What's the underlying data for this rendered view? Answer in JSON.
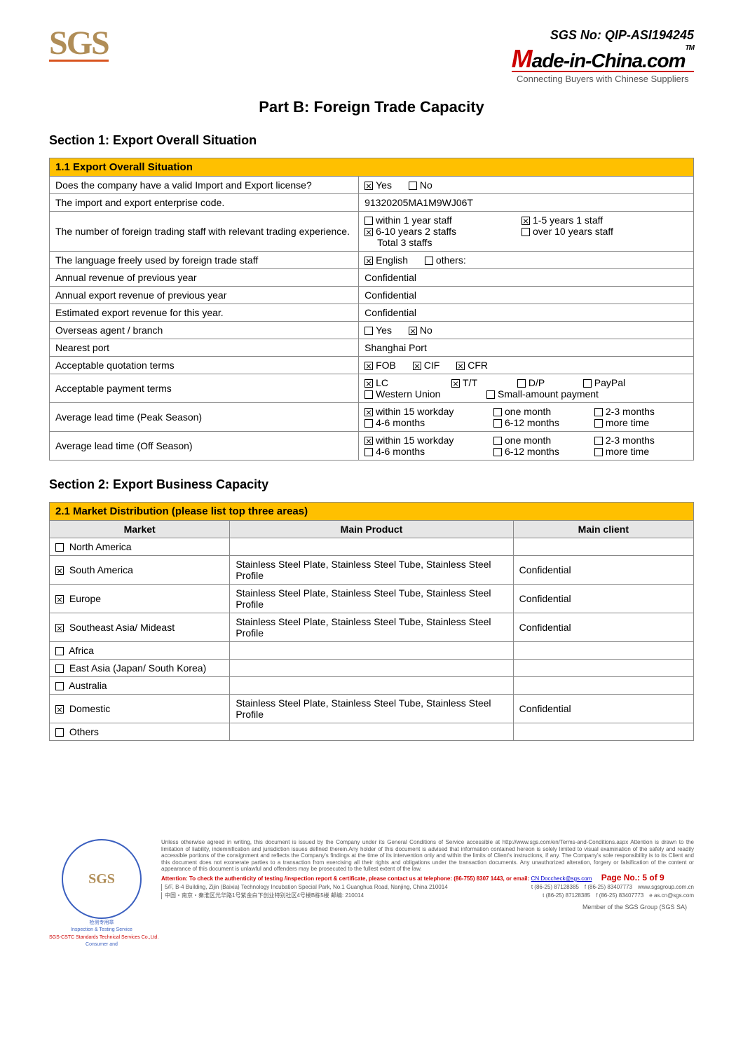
{
  "header": {
    "sgs_logo_text": "SGS",
    "sgs_no_label": "SGS No: QIP-ASI194245",
    "mic_logo_html": "ade-in-China.com",
    "mic_tag": "Connecting Buyers with Chinese Suppliers",
    "tm": "TM"
  },
  "part_title": "Part B: Foreign Trade Capacity",
  "section1": {
    "title": "Section 1: Export Overall Situation",
    "banner": "1.1 Export Overall Situation",
    "rows": {
      "license_q": "Does the company have a valid Import and Export license?",
      "license_yes": "Yes",
      "license_no": "No",
      "code_label": "The import and export enterprise code.",
      "code_value": "91320205MA1M9WJ06T",
      "staff_label": "The number of foreign trading staff with relevant trading experience.",
      "staff_opt1": "within 1 year   staff",
      "staff_opt2": "1-5 years 1 staff",
      "staff_opt3": "6-10 years 2 staffs",
      "staff_opt4": "over 10 years   staff",
      "staff_total": "Total 3 staffs",
      "lang_label": "The language freely used by foreign trade staff",
      "lang_english": "English",
      "lang_others": "others:",
      "rev_prev_label": "Annual revenue of previous year",
      "rev_prev_val": "Confidential",
      "exp_prev_label": "Annual export revenue of previous year",
      "exp_prev_val": "Confidential",
      "est_exp_label": "Estimated export revenue for this year.",
      "est_exp_val": "Confidential",
      "agent_label": "Overseas agent / branch",
      "agent_yes": "Yes",
      "agent_no": "No",
      "port_label": "Nearest port",
      "port_val": "Shanghai Port",
      "quote_label": "Acceptable quotation terms",
      "q_fob": "FOB",
      "q_cif": "CIF",
      "q_cfr": "CFR",
      "pay_label": "Acceptable payment terms",
      "p_lc": "LC",
      "p_tt": "T/T",
      "p_dp": "D/P",
      "p_pp": "PayPal",
      "p_wu": "Western Union",
      "p_sm": "Small-amount payment",
      "lead_peak_label": "Average lead time (Peak Season)",
      "lt_15": "within 15 workday",
      "lt_1m": "one month",
      "lt_23": "2-3 months",
      "lt_46": "4-6 months",
      "lt_612": "6-12 months",
      "lt_more": "more time",
      "lead_off_label": "Average lead time (Off Season)"
    }
  },
  "section2": {
    "title": "Section 2: Export Business Capacity",
    "banner": "2.1 Market Distribution (please list top three areas)",
    "cols": {
      "market": "Market",
      "product": "Main Product",
      "client": "Main client"
    },
    "markets": [
      {
        "name": "North America",
        "checked": false,
        "product": "",
        "client": ""
      },
      {
        "name": "South America",
        "checked": true,
        "product": "Stainless Steel Plate, Stainless Steel Tube, Stainless Steel Profile",
        "client": "Confidential"
      },
      {
        "name": "Europe",
        "checked": true,
        "product": "Stainless Steel Plate, Stainless Steel Tube, Stainless Steel Profile",
        "client": "Confidential"
      },
      {
        "name": "Southeast Asia/ Mideast",
        "checked": true,
        "product": "Stainless Steel Plate, Stainless Steel Tube, Stainless Steel Profile",
        "client": "Confidential"
      },
      {
        "name": "Africa",
        "checked": false,
        "product": "",
        "client": ""
      },
      {
        "name": "East Asia (Japan/ South Korea)",
        "checked": false,
        "product": "",
        "client": ""
      },
      {
        "name": "Australia",
        "checked": false,
        "product": "",
        "client": ""
      },
      {
        "name": "Domestic",
        "checked": true,
        "product": "Stainless Steel Plate, Stainless Steel Tube, Stainless Steel Profile",
        "client": "Confidential"
      },
      {
        "name": "Others",
        "checked": false,
        "product": "",
        "client": ""
      }
    ]
  },
  "footer": {
    "seal_center": "SGS",
    "seal_line1": "检测专用章",
    "seal_line2": "Inspection & Testing Service",
    "seal_line3": "SGS-CSTC Standards Technical Services Co.,Ltd.",
    "seal_line4": "Consumer and",
    "disclaimer": "Unless otherwise agreed in writing, this document is issued by the Company under its General Conditions of Service accessible at http://www.sgs.com/en/Terms-and-Conditions.aspx Attention is drawn to the limitation of liability, indemnification and jurisdiction issues defined therein.Any holder of this document is advised that information contained hereon is solely limited to visual examination of the safely and readily accessible portions of the consignment and reflects the Company's findings at the time of its intervention only and within the limits of Client's instructions, if any. The Company's sole responsibility is to its Client and this document does not exonerate parties to a transaction from exercising all their rights and obligations under the transaction documents. Any unauthorized alteration, forgery or falsification of the content or appearance of this document is unlawful and offenders may be prosecuted to the fullest extent of the law.",
    "attention": "Attention: To check the authenticity of testing /inspection report & certificate, please contact us at telephone: (86-755) 8307 1443, or email: ",
    "email": "CN.Doccheck@sgs.com",
    "page_no": "Page No.: 5 of 9",
    "addr1_cn": "5/F, B-4 Building, Zijin (Baixia) Technology Incubation Special Park, No.1 Guanghua Road, Nanjing, China  210014",
    "addr1_t": "t (86-25) 87128385",
    "addr1_f": "f (86-25) 83407773",
    "addr1_w": "www.sgsgroup.com.cn",
    "addr2_cn": "中国・南京・秦淮区光华路1号紫金白下创业特别社区4号楼B栋5楼  邮编: 210014",
    "addr2_t": "t (86-25) 87128385",
    "addr2_f": "f (86-25) 83407773",
    "addr2_e": "e  as.cn@sgs.com",
    "member": "Member of the SGS Group (SGS SA)"
  }
}
